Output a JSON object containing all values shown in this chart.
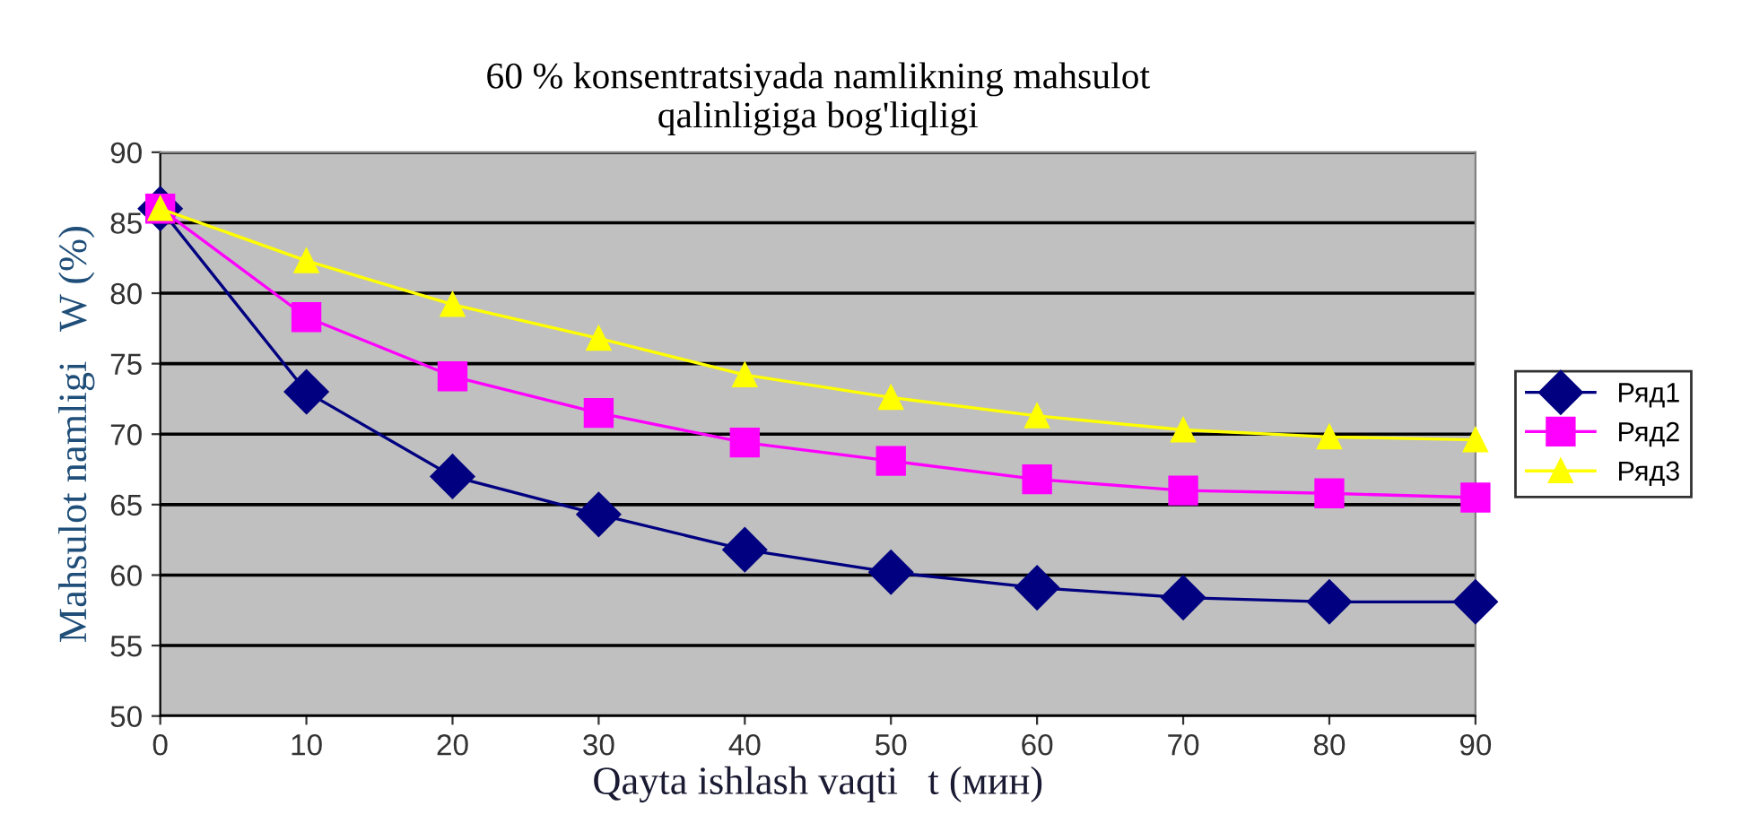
{
  "chart_data": {
    "type": "line",
    "title": "60 % konsentratsiyada namlikning mahsulot\nqalinligiga bog'liqligi",
    "xlabel": "Qayta ishlash vaqti   t (мин)",
    "ylabel": "Mahsulot namligi   W (%)",
    "x": [
      0,
      10,
      20,
      30,
      40,
      50,
      60,
      70,
      80,
      90
    ],
    "series": [
      {
        "name": "Ряд1",
        "color": "#000080",
        "marker": "diamond",
        "values": [
          86,
          73,
          67,
          64.3,
          61.8,
          60.2,
          59.1,
          58.4,
          58.1,
          58.1
        ]
      },
      {
        "name": "Ряд2",
        "color": "#ff00ff",
        "marker": "square",
        "values": [
          86,
          78.3,
          74.1,
          71.5,
          69.4,
          68.1,
          66.8,
          66.0,
          65.8,
          65.5
        ]
      },
      {
        "name": "Ряд3",
        "color": "#ffff00",
        "marker": "triangle",
        "values": [
          86,
          82.3,
          79.2,
          76.8,
          74.2,
          72.6,
          71.3,
          70.3,
          69.8,
          69.6
        ]
      }
    ],
    "xlim": [
      0,
      90
    ],
    "xticks": [
      0,
      10,
      20,
      30,
      40,
      50,
      60,
      70,
      80,
      90
    ],
    "ylim": [
      50,
      90
    ],
    "yticks": [
      50,
      55,
      60,
      65,
      70,
      75,
      80,
      85,
      90
    ],
    "grid": "y",
    "legend": "right"
  }
}
